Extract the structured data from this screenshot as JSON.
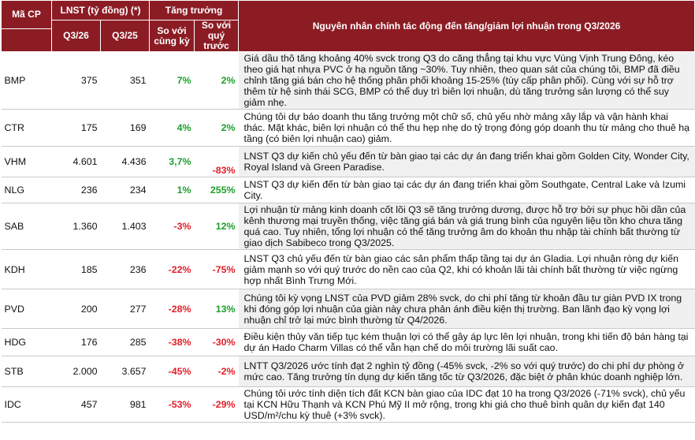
{
  "header": {
    "code": "Mã CP",
    "profit": "LNST (tỷ đồng) (*)",
    "q3_26": "Q3/26",
    "q3_25": "Q3/25",
    "growth": "Tăng trưởng",
    "yoy": "So với cùng kỳ",
    "qoq": "So với quý trước",
    "reason": "Nguyên nhân chính tác động đến tăng/giảm lợi nhuận trong Q3/2026"
  },
  "rows": [
    {
      "code": "BMP",
      "q3_26": "375",
      "q3_25": "351",
      "yoy": "7%",
      "yoy_dir": "pos",
      "qoq": "2%",
      "qoq_dir": "pos",
      "reason": "Giá dầu thô tăng khoảng 40% svck trong Q3 do căng thẳng tại khu vực Vùng Vịnh Trung Đông, kéo theo giá hạt nhựa PVC ở hạ nguồn tăng ~30%. Tuy nhiên, theo quan sát của chúng tôi, BMP đã điều chỉnh tăng giá bán cho hệ thống phân phối khoảng 15-25% (tùy cấp phân phối). Cùng với sự hỗ trợ thêm từ hệ sinh thái SCG, BMP có thể duy trì biên lợi nhuận, dù tăng trưởng sản lượng có thể suy giảm nhẹ."
    },
    {
      "code": "CTR",
      "q3_26": "175",
      "q3_25": "169",
      "yoy": "4%",
      "yoy_dir": "pos",
      "qoq": "2%",
      "qoq_dir": "pos",
      "reason": "Chúng tôi dự báo doanh thu tăng trưởng một chữ số, chủ yếu nhờ mảng xây lắp và vận hành khai thác. Mặt khác, biên lợi nhuận có thể thu hẹp nhẹ do tỷ trọng đóng góp doanh thu từ mảng cho thuê hạ tầng (có biên lợi nhuận cao) giảm."
    },
    {
      "code": "VHM",
      "q3_26": "4.601",
      "q3_25": "4.436",
      "yoy": "3,7%",
      "yoy_dir": "pos",
      "qoq": "-83%",
      "qoq_dir": "neg",
      "reason": "LNST Q3 dự kiến chủ yếu đến từ bàn giao tại các dự án đang triển khai gồm Golden City, Wonder City, Royal Island và Green Paradise."
    },
    {
      "code": "NLG",
      "q3_26": "236",
      "q3_25": "234",
      "yoy": "1%",
      "yoy_dir": "pos",
      "qoq": "255%",
      "qoq_dir": "pos",
      "reason": "LNST Q3 dự kiến đến từ bàn giao tại các dự án đang triển khai gồm Southgate, Central Lake và Izumi City."
    },
    {
      "code": "SAB",
      "q3_26": "1.360",
      "q3_25": "1.403",
      "yoy": "-3%",
      "yoy_dir": "neg",
      "qoq": "12%",
      "qoq_dir": "pos",
      "reason": "Lợi nhuận từ mảng kinh doanh cốt lõi Q3 sẽ tăng trưởng dương, được hỗ trợ bởi sự phục hồi dần của kênh thương mại truyền thống, việc tăng giá bán và giá trung bình của nguyên liệu tồn kho chưa tăng quá cao. Tuy nhiên, tổng lợi nhuận có thể tăng trưởng âm do khoản thu nhập tài chính bất thường từ giao dịch Sabibeco trong Q3/2025."
    },
    {
      "code": "KDH",
      "q3_26": "185",
      "q3_25": "236",
      "yoy": "-22%",
      "yoy_dir": "neg",
      "qoq": "-75%",
      "qoq_dir": "neg",
      "reason": "LNST Q3 chủ yếu đến từ bàn giao các sản phẩm thấp tầng tại dự án Gladia. Lợi nhuận ròng dự kiến giảm mạnh so với quý trước do nền cao của Q2, khi có khoản lãi tài chính bất thường từ việc ngừng hợp nhất Bình Trưng Mới."
    },
    {
      "code": "PVD",
      "q3_26": "200",
      "q3_25": "277",
      "yoy": "-28%",
      "yoy_dir": "neg",
      "qoq": "13%",
      "qoq_dir": "pos",
      "reason": "Chúng tôi kỳ vọng LNST của PVD giảm 28% svck, do chi phí tăng từ khoản đầu tư giàn PVD IX trong khi đóng góp lợi nhuận của giàn này chưa phản ánh điều kiện thị trường. Ban lãnh đạo kỳ vọng lợi nhuận chỉ trở lại mức bình thường từ Q4/2026."
    },
    {
      "code": "HDG",
      "q3_26": "176",
      "q3_25": "285",
      "yoy": "-38%",
      "yoy_dir": "neg",
      "qoq": "-30%",
      "qoq_dir": "neg",
      "reason": "Điều kiện thủy văn tiếp tục kém thuận lợi có thể gây áp lực lên lợi nhuận, trong khi tiến độ bán hàng tại dự án Hado Charm Villas có thể vẫn hạn chế do môi trường lãi suất cao."
    },
    {
      "code": "STB",
      "q3_26": "2.000",
      "q3_25": "3.657",
      "yoy": "-45%",
      "yoy_dir": "neg",
      "qoq": "-2%",
      "qoq_dir": "neg",
      "reason": "LNTT Q3/2026 ước tính đạt 2 nghìn tỷ đồng (-45% svck, -2% so với quý trước) do chi phí dự phòng ở mức cao. Tăng trưởng tín dụng dự kiến tăng tốc từ Q3/2026, đặc biệt ở phân khúc doanh nghiệp lớn."
    },
    {
      "code": "IDC",
      "q3_26": "457",
      "q3_25": "981",
      "yoy": "-53%",
      "yoy_dir": "neg",
      "qoq": "-29%",
      "qoq_dir": "neg",
      "reason": "Chúng tôi ước tính diện tích đất KCN bàn giao của IDC đạt 10 ha trong Q3/2026 (-71% svck), chủ yếu tại KCN Hữu Thạnh và KCN Phú Mỹ II mở rộng, trong khi giá cho thuê bình quân dự kiến đạt 140 USD/m²/chu kỳ thuê (+3% svck)."
    }
  ]
}
